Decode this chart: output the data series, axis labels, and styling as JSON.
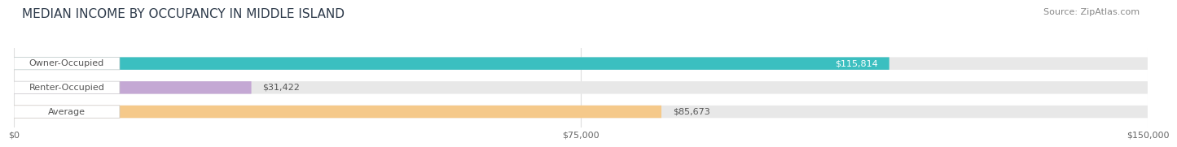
{
  "title": "MEDIAN INCOME BY OCCUPANCY IN MIDDLE ISLAND",
  "source": "Source: ZipAtlas.com",
  "categories": [
    "Owner-Occupied",
    "Renter-Occupied",
    "Average"
  ],
  "values": [
    115814,
    31422,
    85673
  ],
  "bar_colors": [
    "#3bbfc0",
    "#c4a8d4",
    "#f5c98a"
  ],
  "bar_bg_color": "#e8e8e8",
  "value_labels": [
    "$115,814",
    "$31,422",
    "$85,673"
  ],
  "xlim": [
    0,
    150000
  ],
  "xticks": [
    0,
    75000,
    150000
  ],
  "xtick_labels": [
    "$0",
    "$75,000",
    "$150,000"
  ],
  "title_fontsize": 11,
  "source_fontsize": 8,
  "bar_label_fontsize": 8,
  "value_label_fontsize": 8,
  "background_color": "#ffffff",
  "bar_height": 0.52,
  "label_box_color": "#ffffff",
  "label_text_color": "#555555",
  "value_color_inside": "#ffffff",
  "value_color_outside": "#555555",
  "grid_color": "#dddddd"
}
